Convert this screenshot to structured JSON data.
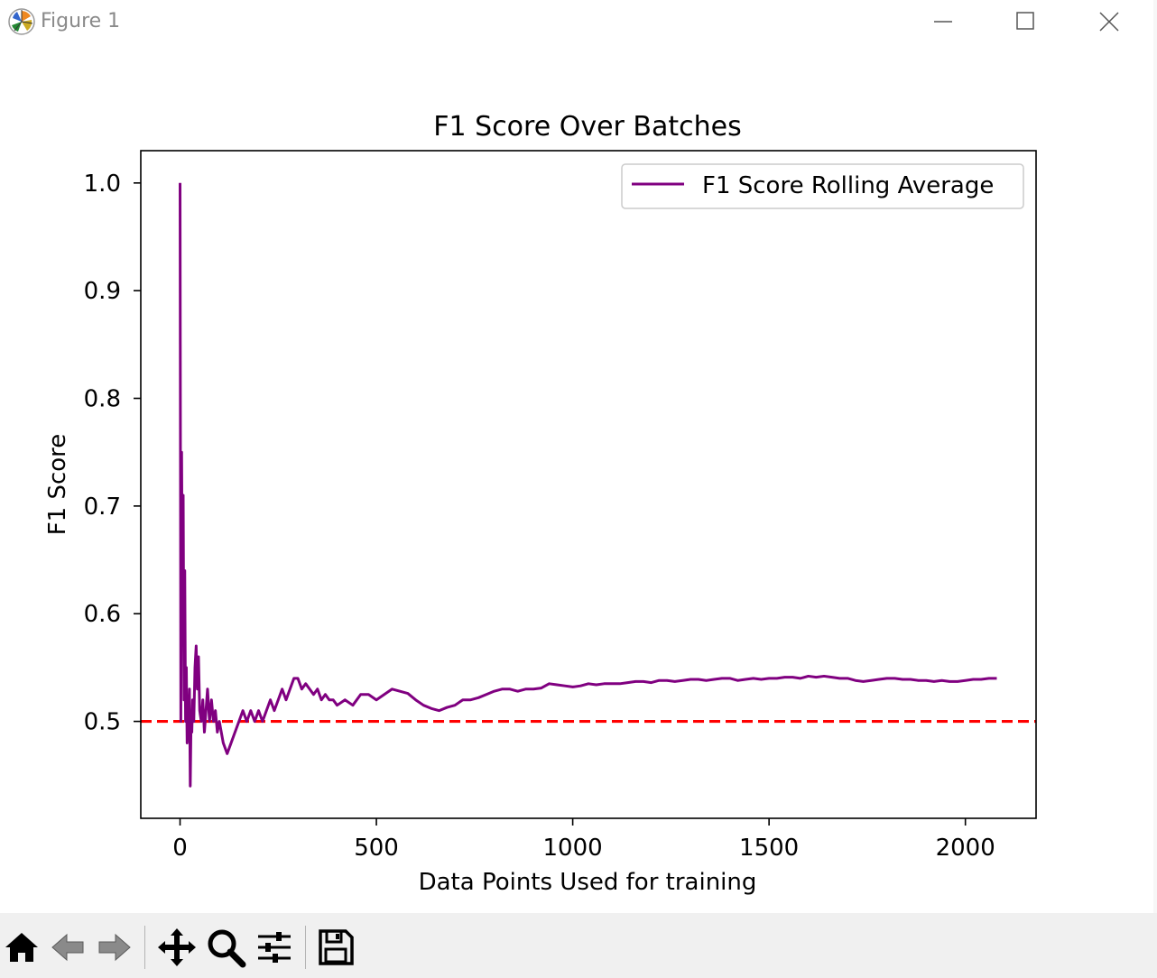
{
  "window": {
    "title": "Figure 1"
  },
  "toolbar": {
    "items": [
      {
        "name": "home-icon"
      },
      {
        "name": "back-arrow-icon"
      },
      {
        "name": "forward-arrow-icon"
      },
      {
        "name": "pan-move-icon"
      },
      {
        "name": "zoom-magnifier-icon"
      },
      {
        "name": "configure-subplots-icon"
      },
      {
        "name": "save-floppy-icon"
      }
    ]
  },
  "colors": {
    "series": "#800080",
    "baseline": "#ff0000",
    "toolbar_bg": "#f0f0f0"
  },
  "chart_data": {
    "type": "line",
    "title": "F1 Score Over Batches",
    "xlabel": "Data Points Used for training",
    "ylabel": "F1 Score",
    "xlim": [
      -100,
      2180
    ],
    "ylim": [
      0.41,
      1.03
    ],
    "xticks": [
      0,
      500,
      1000,
      1500,
      2000
    ],
    "xtick_labels": [
      "0",
      "500",
      "1000",
      "1500",
      "2000"
    ],
    "yticks": [
      0.5,
      0.6,
      0.7,
      0.8,
      0.9,
      1.0
    ],
    "ytick_labels": [
      "0.5",
      "0.6",
      "0.7",
      "0.8",
      "0.9",
      "1.0"
    ],
    "grid": false,
    "legend": {
      "position": "upper right"
    },
    "series": [
      {
        "name": "F1 Score Rolling Average",
        "color": "#800080",
        "x": [
          0,
          2,
          4,
          6,
          8,
          10,
          12,
          14,
          16,
          18,
          20,
          22,
          24,
          26,
          28,
          30,
          32,
          35,
          38,
          41,
          44,
          47,
          50,
          54,
          58,
          62,
          66,
          70,
          75,
          80,
          85,
          90,
          95,
          100,
          110,
          120,
          130,
          140,
          150,
          160,
          170,
          180,
          190,
          200,
          210,
          220,
          230,
          240,
          250,
          260,
          270,
          280,
          290,
          300,
          310,
          320,
          330,
          340,
          350,
          360,
          370,
          380,
          390,
          400,
          420,
          440,
          460,
          480,
          500,
          520,
          540,
          560,
          580,
          600,
          620,
          640,
          660,
          680,
          700,
          720,
          740,
          760,
          780,
          800,
          820,
          840,
          860,
          880,
          900,
          920,
          940,
          960,
          980,
          1000,
          1020,
          1040,
          1060,
          1080,
          1100,
          1120,
          1140,
          1160,
          1180,
          1200,
          1220,
          1240,
          1260,
          1280,
          1300,
          1320,
          1340,
          1360,
          1380,
          1400,
          1420,
          1440,
          1460,
          1480,
          1500,
          1520,
          1540,
          1560,
          1580,
          1600,
          1620,
          1640,
          1660,
          1680,
          1700,
          1720,
          1740,
          1760,
          1780,
          1800,
          1820,
          1840,
          1860,
          1880,
          1900,
          1920,
          1940,
          1960,
          1980,
          2000,
          2020,
          2040,
          2060,
          2080
        ],
        "y": [
          1.0,
          0.5,
          0.75,
          0.6,
          0.71,
          0.52,
          0.64,
          0.5,
          0.55,
          0.48,
          0.52,
          0.5,
          0.53,
          0.44,
          0.5,
          0.49,
          0.52,
          0.5,
          0.55,
          0.57,
          0.53,
          0.56,
          0.51,
          0.5,
          0.52,
          0.49,
          0.51,
          0.53,
          0.5,
          0.52,
          0.5,
          0.51,
          0.49,
          0.5,
          0.48,
          0.47,
          0.48,
          0.49,
          0.5,
          0.51,
          0.5,
          0.51,
          0.5,
          0.51,
          0.5,
          0.51,
          0.52,
          0.51,
          0.52,
          0.53,
          0.52,
          0.53,
          0.54,
          0.54,
          0.53,
          0.535,
          0.53,
          0.525,
          0.53,
          0.52,
          0.525,
          0.52,
          0.52,
          0.515,
          0.52,
          0.515,
          0.525,
          0.525,
          0.52,
          0.525,
          0.53,
          0.528,
          0.526,
          0.52,
          0.515,
          0.512,
          0.51,
          0.513,
          0.515,
          0.52,
          0.52,
          0.522,
          0.525,
          0.528,
          0.53,
          0.53,
          0.528,
          0.53,
          0.53,
          0.531,
          0.535,
          0.534,
          0.533,
          0.532,
          0.533,
          0.535,
          0.534,
          0.535,
          0.535,
          0.535,
          0.536,
          0.537,
          0.537,
          0.536,
          0.538,
          0.538,
          0.537,
          0.538,
          0.539,
          0.539,
          0.538,
          0.539,
          0.54,
          0.54,
          0.538,
          0.539,
          0.54,
          0.539,
          0.54,
          0.54,
          0.541,
          0.541,
          0.54,
          0.542,
          0.541,
          0.542,
          0.541,
          0.54,
          0.54,
          0.538,
          0.537,
          0.538,
          0.539,
          0.54,
          0.54,
          0.539,
          0.539,
          0.538,
          0.538,
          0.537,
          0.538,
          0.537,
          0.537,
          0.538,
          0.539,
          0.539,
          0.54,
          0.54
        ]
      }
    ],
    "reference_line": {
      "y": 0.5,
      "style": "dashed",
      "color": "#ff0000"
    }
  }
}
